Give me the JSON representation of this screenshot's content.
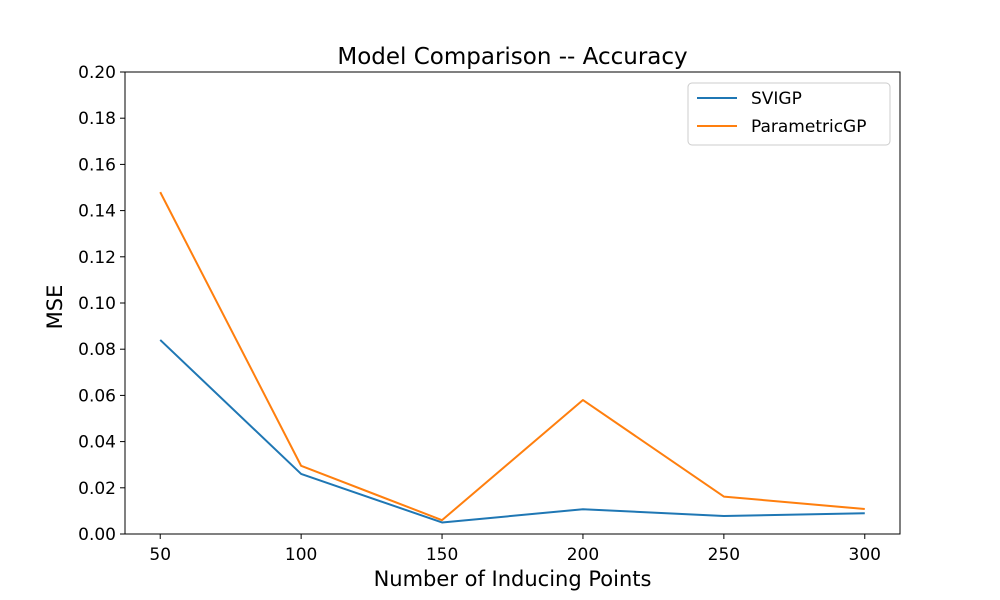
{
  "chart_data": {
    "type": "line",
    "title": "Model Comparison -- Accuracy",
    "xlabel": "Number of Inducing Points",
    "ylabel": "MSE",
    "x": [
      50,
      100,
      150,
      200,
      250,
      300
    ],
    "xticks": [
      "50",
      "100",
      "150",
      "200",
      "250",
      "300"
    ],
    "yticks": [
      "0.00",
      "0.02",
      "0.04",
      "0.06",
      "0.08",
      "0.10",
      "0.12",
      "0.14",
      "0.16",
      "0.18",
      "0.20"
    ],
    "xlim": [
      37.5,
      312.5
    ],
    "ylim": [
      0,
      0.2
    ],
    "grid": false,
    "legend_position": "upper right",
    "series": [
      {
        "name": "SVIGP",
        "color": "#1f77b4",
        "values": [
          0.084,
          0.026,
          0.005,
          0.0107,
          0.0078,
          0.009
        ]
      },
      {
        "name": "ParametricGP",
        "color": "#ff7f0e",
        "values": [
          0.148,
          0.0295,
          0.006,
          0.058,
          0.0162,
          0.0108
        ]
      }
    ]
  }
}
